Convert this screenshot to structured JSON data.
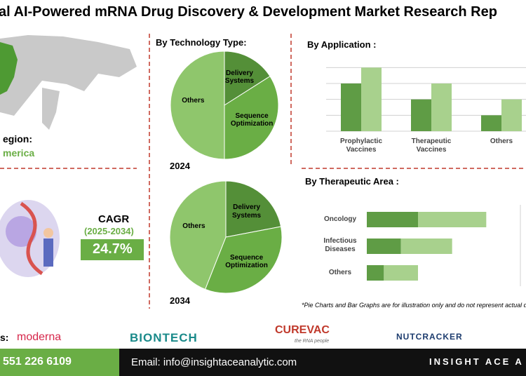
{
  "header": {
    "title": "al AI-Powered mRNA Drug Discovery & Development Market Research Rep"
  },
  "region": {
    "label": "egion:",
    "value": "merica"
  },
  "cagr": {
    "label": "CAGR",
    "period": "(2025-2034)",
    "value": "24.7%"
  },
  "technology": {
    "title": "By Technology Type:",
    "charts": [
      {
        "type": "pie",
        "year": "2024",
        "categories": [
          "Delivery Systems",
          "Sequence Optimization",
          "Others"
        ],
        "values": [
          16,
          34,
          50
        ],
        "colors": [
          "#548f38",
          "#6aae45",
          "#8fc66c"
        ]
      },
      {
        "type": "pie",
        "year": "2034",
        "categories": [
          "Delivery Systems",
          "Sequence Optimization",
          "Others"
        ],
        "values": [
          22,
          34,
          44
        ],
        "colors": [
          "#548f38",
          "#6aae45",
          "#8fc66c"
        ]
      }
    ]
  },
  "application": {
    "type": "bar",
    "title": "By Application :",
    "categories": [
      "Prophylactic Vaccines",
      "Therapeutic Vaccines",
      "Others"
    ],
    "series": [
      {
        "color": "#5f9c45",
        "values": [
          3,
          2,
          1
        ]
      },
      {
        "color": "#a8d18d",
        "values": [
          4,
          3,
          2
        ]
      }
    ],
    "ylim": [
      0,
      4.5
    ],
    "grid": true
  },
  "therapeutic": {
    "type": "stacked-barh",
    "title": "By Therapeutic Area :",
    "categories": [
      "Oncology",
      "Infectious Diseases",
      "Others"
    ],
    "series": [
      {
        "color": "#5f9c45",
        "values": [
          3,
          2,
          1
        ]
      },
      {
        "color": "#a8d18d",
        "values": [
          4,
          3,
          2
        ]
      }
    ],
    "xlim": [
      0,
      9
    ]
  },
  "note": "*Pie Charts and Bar Graphs are for illustration only and do not represent actual d",
  "partners": {
    "label": "s:",
    "logos": [
      "moderna",
      "BIONTECH",
      "CUREVAC",
      "the RNA people",
      "NUTCRACKER"
    ]
  },
  "footer": {
    "phone": "551 226 6109",
    "email": "Email: info@insightaceanalytic.com",
    "brand": "INSIGHT ACE A"
  }
}
